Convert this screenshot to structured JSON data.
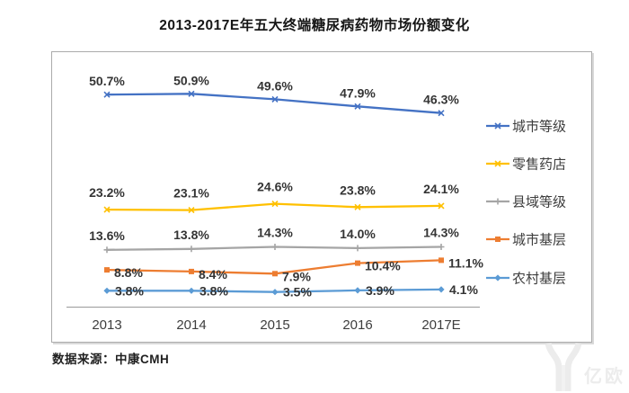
{
  "title": "2013-2017E年五大终端糖尿病药物市场份额变化",
  "source": "数据来源：中康CMH",
  "watermark": "亿欧",
  "chart_data": {
    "type": "line",
    "title": "2013-2017E年五大终端糖尿病药物市场份额变化",
    "categories": [
      "2013",
      "2014",
      "2015",
      "2016",
      "2017E"
    ],
    "series": [
      {
        "name": "城市等级",
        "color": "#4472C4",
        "marker": "x",
        "label_position": "above",
        "label_dx": 0,
        "label_dy": -10,
        "values": [
          50.7,
          50.9,
          49.6,
          47.9,
          46.3
        ]
      },
      {
        "name": "零售药店",
        "color": "#FFC000",
        "marker": "x",
        "label_position": "above",
        "label_dx": 0,
        "label_dy": -14,
        "values": [
          23.2,
          23.1,
          24.6,
          23.8,
          24.1
        ]
      },
      {
        "name": "县域等级",
        "color": "#A5A5A5",
        "marker": "plus",
        "label_position": "above",
        "label_dx": 0,
        "label_dy": -11,
        "values": [
          13.6,
          13.8,
          14.3,
          14.0,
          14.3
        ]
      },
      {
        "name": "城市基层",
        "color": "#ED7D31",
        "marker": "square",
        "label_position": "right",
        "label_dx": 8,
        "label_dy": 8,
        "values": [
          8.8,
          8.4,
          7.9,
          10.4,
          11.1
        ]
      },
      {
        "name": "农村基层",
        "color": "#5B9BD5",
        "marker": "diamond",
        "label_position": "right",
        "label_dx": 9,
        "label_dy": 5,
        "values": [
          3.8,
          3.8,
          3.5,
          3.9,
          4.1
        ]
      }
    ],
    "value_suffix": "%",
    "xlabel": "",
    "ylabel": "",
    "ylim": [
      0,
      60
    ],
    "grid": false,
    "legend_position": "right",
    "source_note": "数据来源：中康CMH"
  }
}
